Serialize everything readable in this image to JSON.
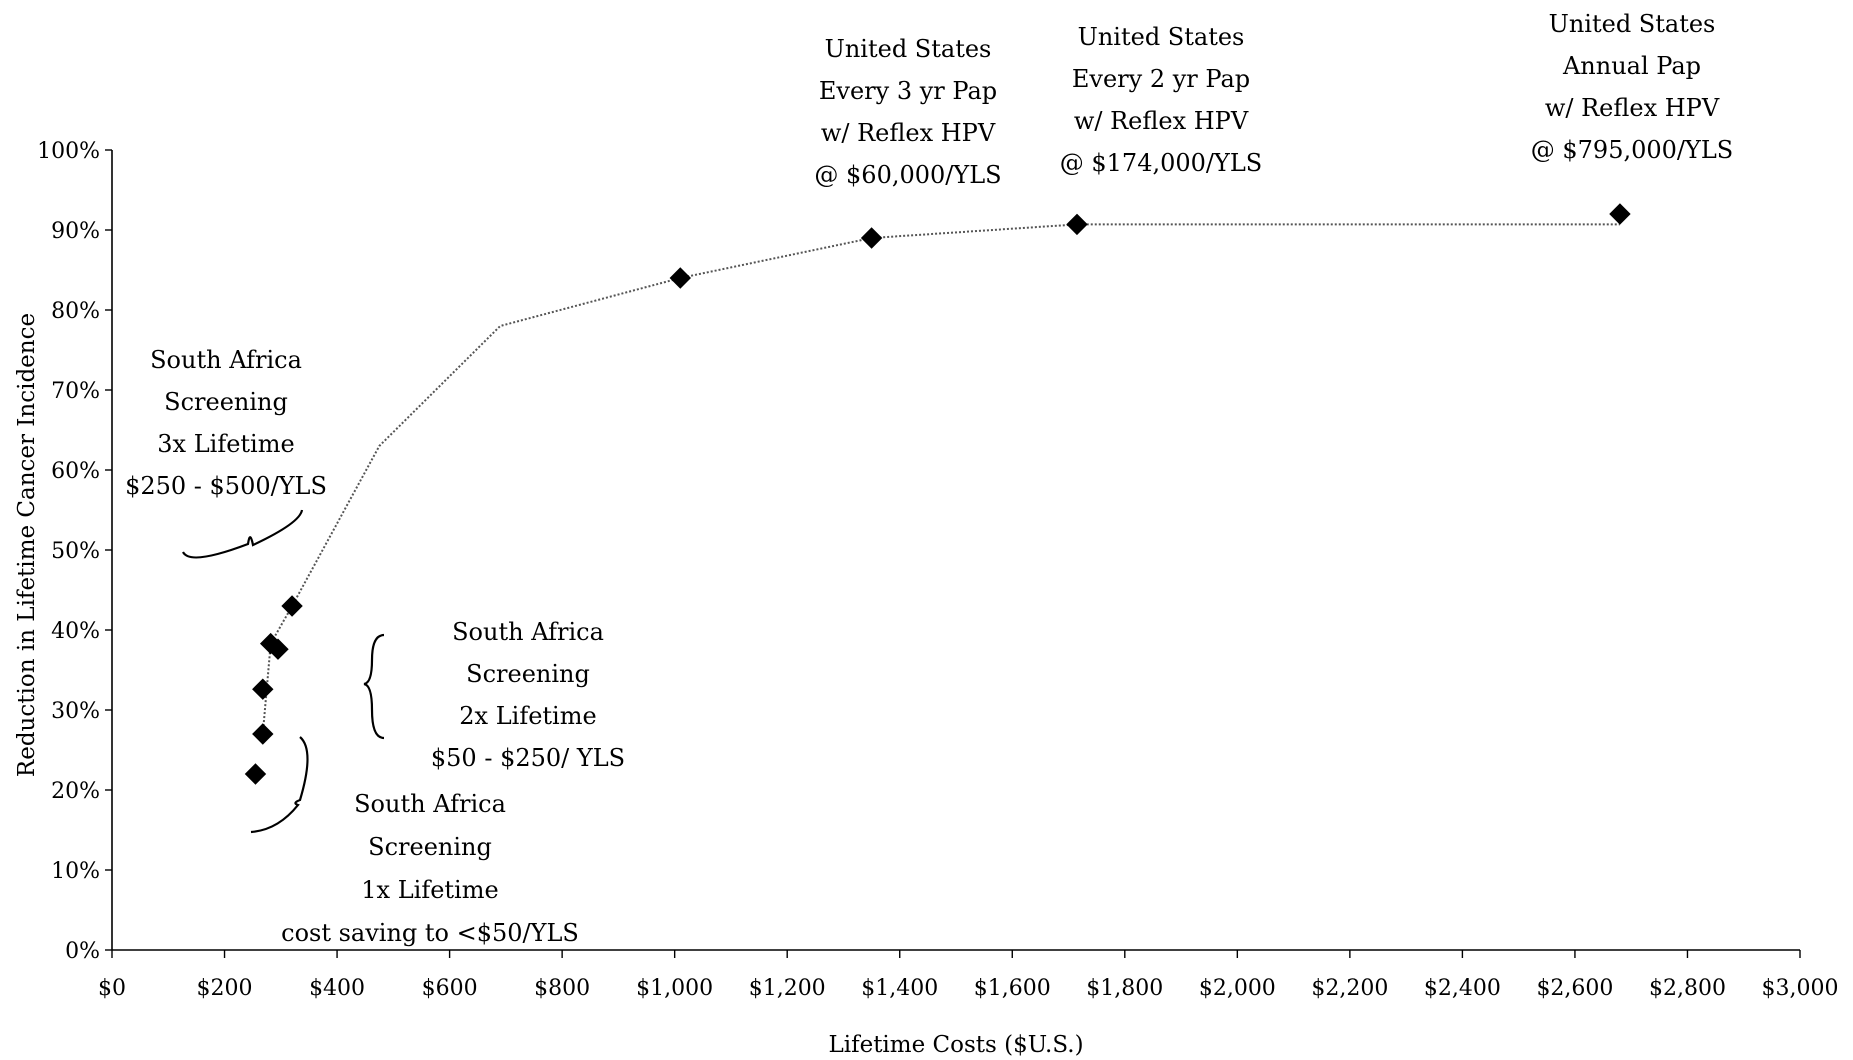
{
  "chart_data": {
    "type": "scatter",
    "xlabel": "Lifetime Costs ($U.S.)",
    "ylabel": "Reduction in Lifetime Cancer Incidence",
    "xlim": [
      0,
      3000
    ],
    "ylim": [
      0,
      100
    ],
    "x_ticks": [
      0,
      200,
      400,
      600,
      800,
      1000,
      1200,
      1400,
      1600,
      1800,
      2000,
      2200,
      2400,
      2600,
      2800,
      3000
    ],
    "x_tick_labels": [
      "$0",
      "$200",
      "$400",
      "$600",
      "$800",
      "$1,000",
      "$1,200",
      "$1,400",
      "$1,600",
      "$1,800",
      "$2,000",
      "$2,200",
      "$2,400",
      "$2,600",
      "$2,800",
      "$3,000"
    ],
    "y_ticks": [
      0,
      10,
      20,
      30,
      40,
      50,
      60,
      70,
      80,
      90,
      100
    ],
    "y_tick_labels": [
      "0%",
      "10%",
      "20%",
      "30%",
      "40%",
      "50%",
      "60%",
      "70%",
      "80%",
      "90%",
      "100%"
    ],
    "grid": false,
    "series": [
      {
        "style": "diamond-markers",
        "points": [
          {
            "x": 255,
            "y": 22
          },
          {
            "x": 268,
            "y": 27
          },
          {
            "x": 268,
            "y": 32.6
          },
          {
            "x": 282,
            "y": 38.3
          },
          {
            "x": 295,
            "y": 37.6
          },
          {
            "x": 320,
            "y": 43
          },
          {
            "x": 1010,
            "y": 84
          },
          {
            "x": 1350,
            "y": 89
          },
          {
            "x": 1715,
            "y": 90.7
          },
          {
            "x": 2680,
            "y": 92
          }
        ]
      },
      {
        "style": "dotted-line",
        "points": [
          {
            "x": 268,
            "y": 27
          },
          {
            "x": 282,
            "y": 38.3
          },
          {
            "x": 320,
            "y": 43
          },
          {
            "x": 475,
            "y": 63
          },
          {
            "x": 690,
            "y": 78
          },
          {
            "x": 1010,
            "y": 84
          },
          {
            "x": 1350,
            "y": 89
          },
          {
            "x": 1715,
            "y": 90.7
          },
          {
            "x": 2680,
            "y": 90.7
          }
        ]
      }
    ],
    "annotations": [
      {
        "lines": [
          "United States",
          "Every 3 yr Pap",
          "w/ Reflex HPV",
          "@ $60,000/YLS"
        ]
      },
      {
        "lines": [
          "United States",
          "Every 2 yr Pap",
          "w/ Reflex HPV",
          "@ $174,000/YLS"
        ]
      },
      {
        "lines": [
          "United States",
          "Annual Pap",
          "w/ Reflex HPV",
          "@ $795,000/YLS"
        ]
      },
      {
        "lines": [
          "South Africa",
          "Screening",
          "3x  Lifetime",
          "$250 - $500/YLS"
        ]
      },
      {
        "lines": [
          "South Africa",
          "Screening",
          "2x Lifetime",
          "$50 - $250/ YLS"
        ]
      },
      {
        "lines": [
          "South Africa",
          "Screening",
          "1x Lifetime",
          "cost saving to <$50/YLS"
        ]
      }
    ]
  }
}
